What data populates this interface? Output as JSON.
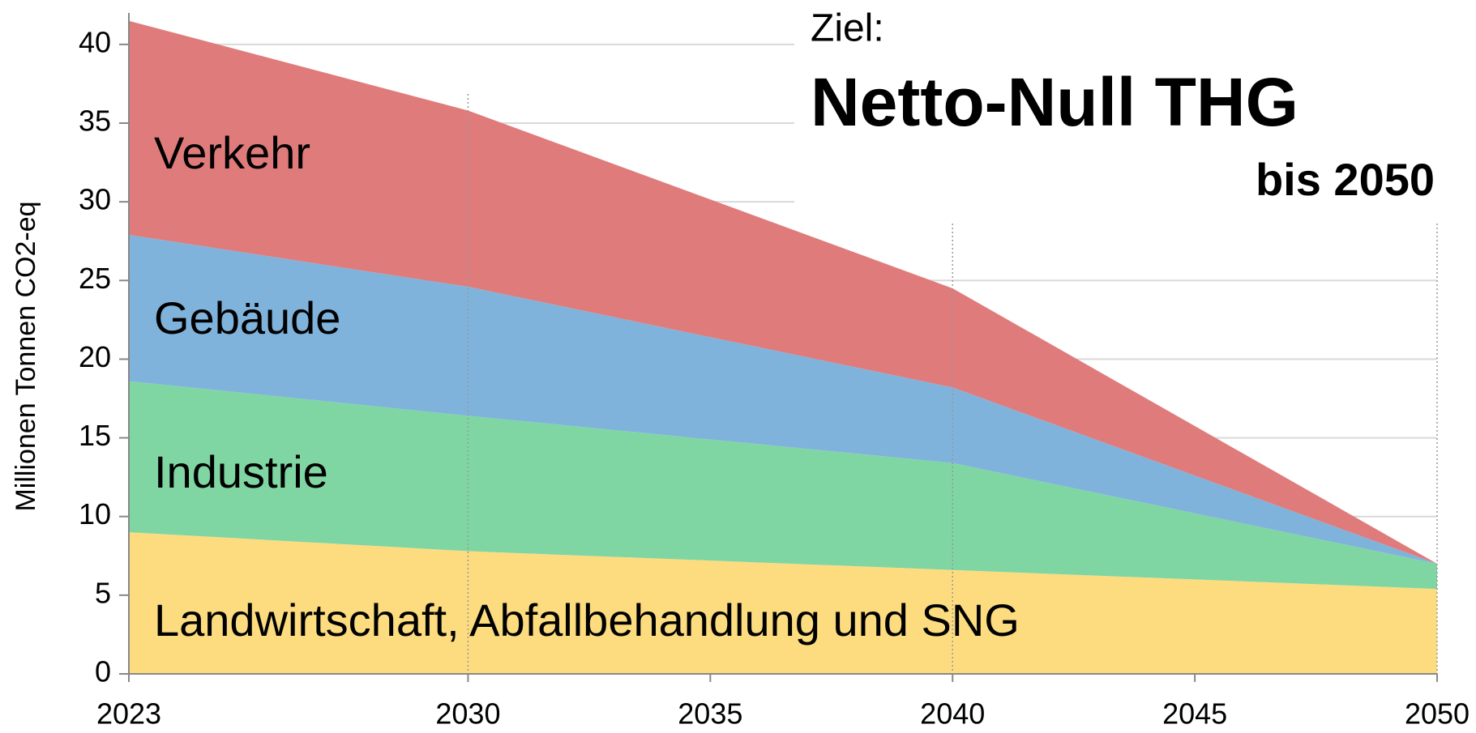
{
  "chart_data": {
    "type": "stacked_area",
    "title": "Netto-Null THG",
    "annotations": [
      "Ziel:",
      "bis 2050"
    ],
    "ylabel": "Millionen Tonnen CO2-eq",
    "x": [
      2023,
      2030,
      2040,
      2050
    ],
    "xlim": [
      2023,
      2050
    ],
    "xticks": [
      2023,
      2030,
      2035,
      2040,
      2045,
      2050
    ],
    "ylim": [
      0,
      42
    ],
    "yticks": [
      0,
      5,
      10,
      15,
      20,
      25,
      30,
      35,
      40
    ],
    "grid": true,
    "series": [
      {
        "name": "Landwirtschaft, Abfallbehandlung und SNG",
        "color": "#fddc80",
        "values": [
          9.0,
          7.8,
          6.6,
          5.4
        ]
      },
      {
        "name": "Industrie",
        "color": "#7fd6a3",
        "values": [
          9.6,
          8.6,
          6.8,
          1.6
        ]
      },
      {
        "name": "Gebäude",
        "color": "#7fb3dc",
        "values": [
          9.3,
          8.2,
          4.8,
          0
        ]
      },
      {
        "name": "Verkehr",
        "color": "#e07b7b",
        "values": [
          13.6,
          11.2,
          6.3,
          0
        ]
      }
    ]
  }
}
